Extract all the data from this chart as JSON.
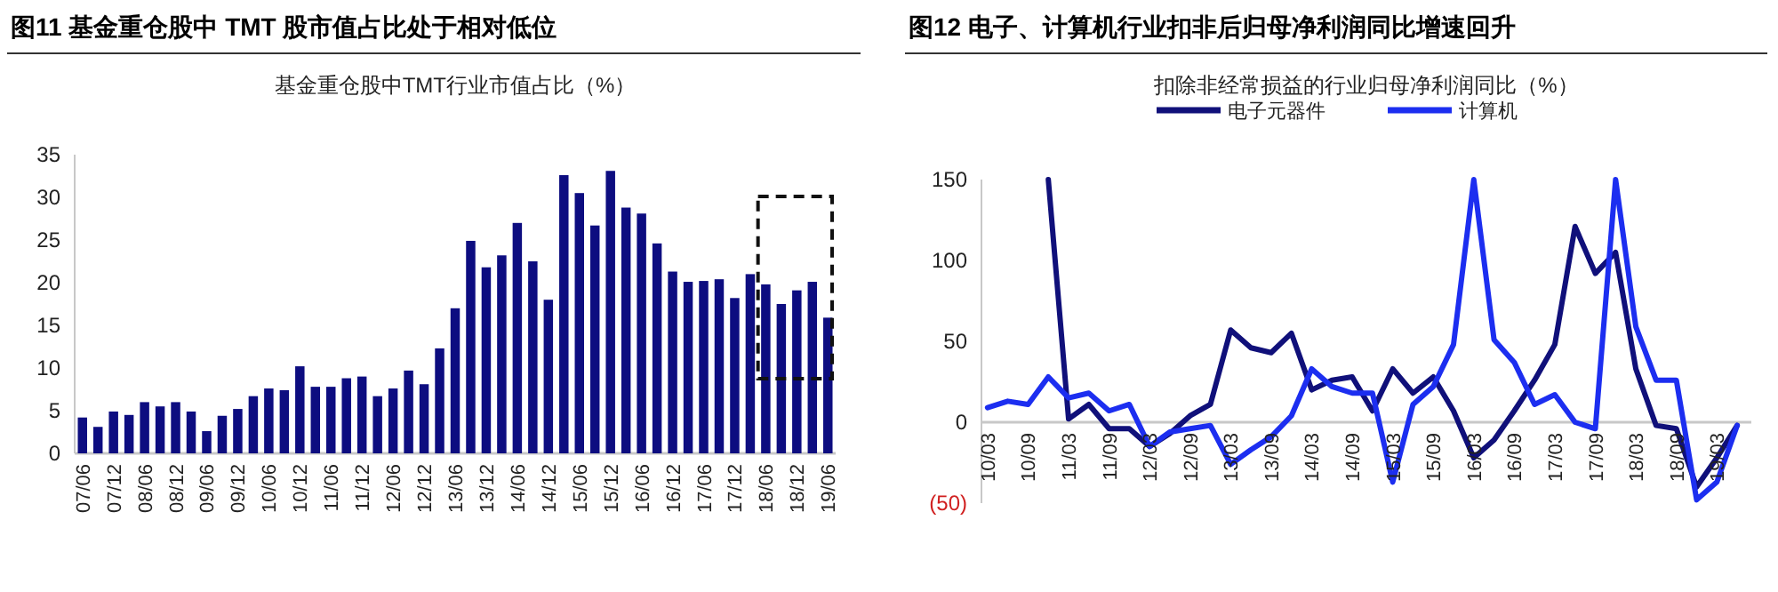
{
  "chart_data": [
    {
      "type": "bar",
      "title": "图11 基金重仓股中 TMT 股市值占比处于相对低位",
      "subtitle": "基金重仓股中TMT行业市值占比（%）",
      "categories": [
        "07/06",
        null,
        "07/12",
        null,
        "08/06",
        null,
        "08/12",
        null,
        "09/06",
        null,
        "09/12",
        null,
        "10/06",
        null,
        "10/12",
        null,
        "11/06",
        null,
        "11/12",
        null,
        "12/06",
        null,
        "12/12",
        null,
        "13/06",
        null,
        "13/12",
        null,
        "14/06",
        null,
        "14/12",
        null,
        "15/06",
        null,
        "15/12",
        null,
        "16/06",
        null,
        "16/12",
        null,
        "17/06",
        null,
        "17/12",
        null,
        "18/06",
        null,
        "18/12",
        null,
        "19/06"
      ],
      "values": [
        4.2,
        3.1,
        4.9,
        4.5,
        6.0,
        5.5,
        6.0,
        4.9,
        2.6,
        4.4,
        5.2,
        6.7,
        7.6,
        7.4,
        10.2,
        7.8,
        7.8,
        8.8,
        9.0,
        6.7,
        7.6,
        9.7,
        8.1,
        12.3,
        17.0,
        24.9,
        21.8,
        23.2,
        27.0,
        22.5,
        18.0,
        32.6,
        30.5,
        26.7,
        33.1,
        28.8,
        28.1,
        24.6,
        21.3,
        20.1,
        20.2,
        20.4,
        18.2,
        21.0,
        19.8,
        17.5,
        19.1,
        20.1,
        15.9
      ],
      "color": "#0d0d80",
      "ylim": [
        0,
        35
      ],
      "yticks": [
        0,
        5,
        10,
        15,
        20,
        25,
        30,
        35
      ]
    },
    {
      "type": "line",
      "title": "图12 电子、计算机行业扣非后归母净利润同比增速回升",
      "subtitle": "扣除非经常损益的行业归母净利润同比（%）",
      "categories": [
        "10/03",
        null,
        "10/09",
        null,
        "11/03",
        null,
        "11/09",
        null,
        "12/03",
        null,
        "12/09",
        null,
        "13/03",
        null,
        "13/09",
        null,
        "14/03",
        null,
        "14/09",
        null,
        "15/03",
        null,
        "15/09",
        null,
        "16/03",
        null,
        "16/09",
        null,
        "17/03",
        null,
        "17/09",
        null,
        "18/03",
        null,
        "18/09",
        null,
        "19/03",
        null
      ],
      "series": [
        {
          "name": "电子元器件",
          "color": "#10107a",
          "values": [
            null,
            null,
            null,
            150,
            2,
            11,
            -4,
            -4,
            -15,
            -7,
            4,
            11,
            57,
            46,
            43,
            55,
            20,
            26,
            28,
            7,
            33,
            18,
            28,
            7,
            -22,
            -11,
            7,
            26,
            48,
            121,
            92,
            105,
            33,
            -2,
            -4,
            -40,
            -22,
            -2
          ]
        },
        {
          "name": "计算机",
          "color": "#1c2ef0",
          "values": [
            9,
            13,
            11,
            28,
            15,
            18,
            7,
            11,
            -15,
            -6,
            -4,
            -2,
            -26,
            -17,
            -9,
            4,
            33,
            22,
            18,
            18,
            -37,
            11,
            22,
            48,
            150,
            51,
            37,
            11,
            17,
            0,
            -4,
            150,
            59,
            26,
            26,
            -48,
            -37,
            -2
          ]
        }
      ],
      "ylim": [
        -50,
        150
      ],
      "yticks": [
        {
          "value": -50,
          "label": "(50)"
        },
        0,
        50,
        100,
        150
      ],
      "legend": "top"
    }
  ]
}
